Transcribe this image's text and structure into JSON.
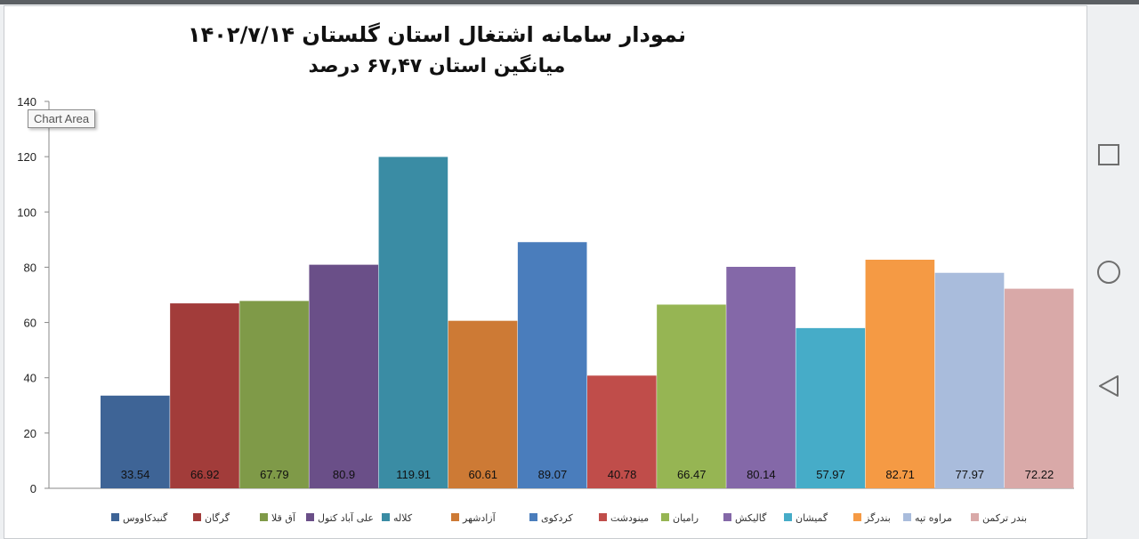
{
  "tooltip": "Chart Area",
  "chart_data": {
    "type": "bar",
    "title": "نمودار سامانه اشتغال استان گلستان ۱۴۰۲/۷/۱۴",
    "subtitle": "میانگین استان ۶۷,۴۷ درصد",
    "ylim": [
      0,
      140
    ],
    "yticks": [
      0,
      20,
      40,
      60,
      80,
      100,
      120,
      140
    ],
    "grid": false,
    "legend_position": "bottom",
    "categories": [
      "گنبدکاووس",
      "گرگان",
      "آق قلا",
      "علی آباد کتول",
      "کلاله",
      "آزادشهر",
      "کردکوی",
      "مینودشت",
      "رامیان",
      "گالیکش",
      "گمیشان",
      "بندرگز",
      "مراوه تپه",
      "بندر ترکمن"
    ],
    "values": [
      33.54,
      66.92,
      67.79,
      80.9,
      119.91,
      60.61,
      89.07,
      40.78,
      66.47,
      80.14,
      57.97,
      82.71,
      77.97,
      72.22
    ],
    "value_labels": [
      "33.54",
      "66.92",
      "67.79",
      "80.9",
      "119.91",
      "60.61",
      "89.07",
      "40.78",
      "66.47",
      "80.14",
      "57.97",
      "82.71",
      "77.97",
      "72.22"
    ],
    "colors": [
      "#3e6496",
      "#a23c3a",
      "#7f9a48",
      "#6a4f88",
      "#3a8ca4",
      "#cd7a35",
      "#4a7dbc",
      "#c04d4a",
      "#96b553",
      "#8468a8",
      "#46acc8",
      "#f59a44",
      "#a9bcdc",
      "#d9a9a8"
    ]
  },
  "nav": {
    "square": "square-icon",
    "circle": "circle-icon",
    "back": "back-triangle-icon"
  }
}
